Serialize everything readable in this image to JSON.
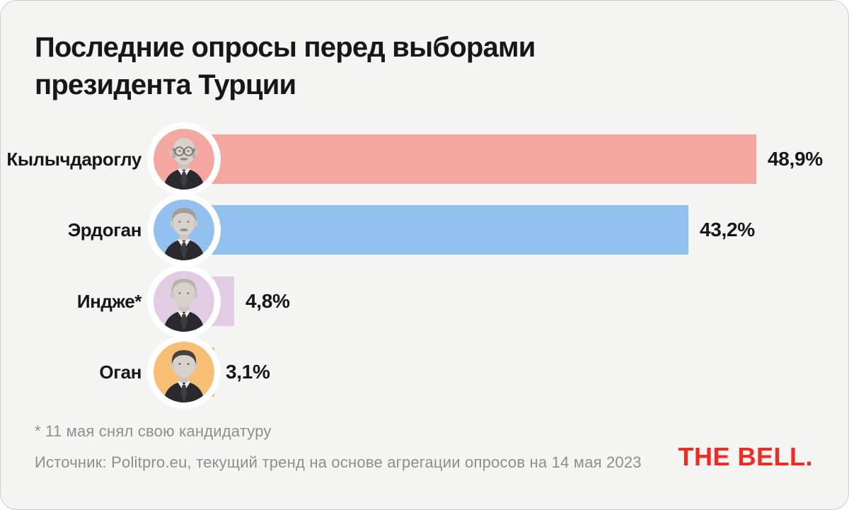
{
  "page": {
    "title_lines": [
      "Последние опросы перед выборами",
      "президента Турции"
    ],
    "footnote": "* 11 мая снял свою кандидатуру",
    "source": "Источник: Politpro.eu, текущий тренд на основе агрегации опросов на 14 мая 2023",
    "logo_text": "THE BELL.",
    "colors": {
      "card_bg": "#F4F4F2",
      "text": "#17171A",
      "muted": "#8E8E8E",
      "logo": "#F42920"
    }
  },
  "chart_data": {
    "type": "bar",
    "orientation": "horizontal",
    "title": "Последние опросы перед выборами президента Турции",
    "xlabel": "",
    "ylabel": "",
    "xlim": [
      0,
      50
    ],
    "grid": false,
    "legend": false,
    "categories": [
      "Кылычдароглу",
      "Эрдоган",
      "Индже*",
      "Оган"
    ],
    "values": [
      48.9,
      43.2,
      4.8,
      3.1
    ],
    "candidates": [
      {
        "label": "Кылычдароглу",
        "value": 48.9,
        "value_label": "48,9%",
        "color": "#F3A7A0"
      },
      {
        "label": "Эрдоган",
        "value": 43.2,
        "value_label": "43,2%",
        "color": "#92C1F0"
      },
      {
        "label": "Индже*",
        "value": 4.8,
        "value_label": "4,8%",
        "color": "#E2CCE3"
      },
      {
        "label": "Оган",
        "value": 3.1,
        "value_label": "3,1%",
        "color": "#F8BE73"
      }
    ],
    "footnote": "* 11 мая снял свою кандидатуру",
    "source": "Источник: Politpro.eu, текущий тренд на основе агрегации опросов на 14 мая 2023"
  }
}
